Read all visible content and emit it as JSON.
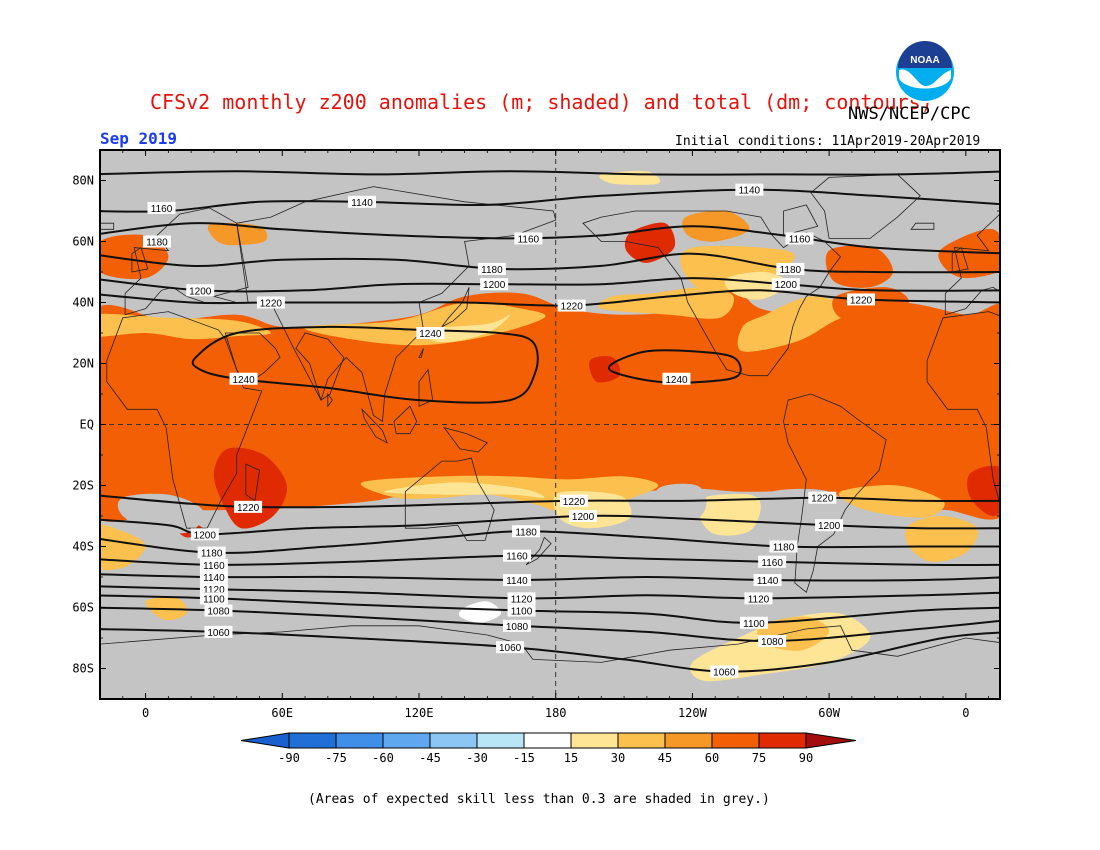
{
  "header": {
    "title": "CFSv2 monthly z200 anomalies (m; shaded) and total (dm; contours)",
    "agency": "NWS/NCEP/CPC",
    "month": "Sep 2019",
    "initial_conditions": "Initial conditions: 11Apr2019-20Apr2019",
    "logo_text": "NOAA"
  },
  "axes": {
    "lat_labels": [
      "80N",
      "60N",
      "40N",
      "20N",
      "EQ",
      "20S",
      "40S",
      "60S",
      "80S"
    ],
    "lat_values": [
      80,
      60,
      40,
      20,
      0,
      -20,
      -40,
      -60,
      -80
    ],
    "lon_labels": [
      "0",
      "60E",
      "120E",
      "180",
      "120W",
      "60W",
      "0"
    ],
    "lon_values": [
      0,
      60,
      120,
      180,
      240,
      300,
      360
    ],
    "lon_range": [
      -20,
      375
    ],
    "lat_range": [
      -90,
      90
    ]
  },
  "colorbar": {
    "ticks": [
      "-90",
      "-75",
      "-60",
      "-45",
      "-30",
      "-15",
      "15",
      "30",
      "45",
      "60",
      "75",
      "90"
    ],
    "colors": [
      "#1f6fd6",
      "#3f8ee8",
      "#5fa8f0",
      "#8cc6f4",
      "#b8e6f6",
      "#ffffff",
      "#fde595",
      "#fbc04d",
      "#f59827",
      "#f25f05",
      "#e02a02",
      "#b70f0a"
    ],
    "low_color": "#1a5fcf",
    "high_color": "#a40d0d"
  },
  "colors": {
    "grey": "#c4c4c4",
    "a15": "#fde595",
    "a30": "#fbc04d",
    "a45": "#f59827",
    "a60": "#f25f05",
    "a75": "#e02a02",
    "a90": "#b70f0a",
    "white": "#ffffff"
  },
  "contours": {
    "labels": [
      {
        "t": "1140",
        "lon": 95,
        "lat": 73
      },
      {
        "t": "1140",
        "lon": 265,
        "lat": 77
      },
      {
        "t": "1160",
        "lon": 7,
        "lat": 71
      },
      {
        "t": "1180",
        "lon": 5,
        "lat": 60
      },
      {
        "t": "1160",
        "lon": 168,
        "lat": 61
      },
      {
        "t": "1160",
        "lon": 287,
        "lat": 61
      },
      {
        "t": "1180",
        "lon": 152,
        "lat": 51
      },
      {
        "t": "1180",
        "lon": 283,
        "lat": 51
      },
      {
        "t": "1200",
        "lon": 24,
        "lat": 44
      },
      {
        "t": "1200",
        "lon": 153,
        "lat": 46
      },
      {
        "t": "1200",
        "lon": 281,
        "lat": 46
      },
      {
        "t": "1220",
        "lon": 55,
        "lat": 40
      },
      {
        "t": "1220",
        "lon": 187,
        "lat": 39
      },
      {
        "t": "1220",
        "lon": 314,
        "lat": 41
      },
      {
        "t": "1240",
        "lon": 125,
        "lat": 30
      },
      {
        "t": "1240",
        "lon": 43,
        "lat": 15
      },
      {
        "t": "1240",
        "lon": 233,
        "lat": 15
      },
      {
        "t": "1220",
        "lon": 45,
        "lat": -27
      },
      {
        "t": "1220",
        "lon": 188,
        "lat": -25
      },
      {
        "t": "1200",
        "lon": 192,
        "lat": -30
      },
      {
        "t": "1220",
        "lon": 297,
        "lat": -24
      },
      {
        "t": "1200",
        "lon": 300,
        "lat": -33
      },
      {
        "t": "1200",
        "lon": 26,
        "lat": -36
      },
      {
        "t": "1180",
        "lon": 167,
        "lat": -35
      },
      {
        "t": "1180",
        "lon": 280,
        "lat": -40
      },
      {
        "t": "1180",
        "lon": 29,
        "lat": -42
      },
      {
        "t": "1160",
        "lon": 30,
        "lat": -46
      },
      {
        "t": "1160",
        "lon": 163,
        "lat": -43
      },
      {
        "t": "1160",
        "lon": 275,
        "lat": -45
      },
      {
        "t": "1140",
        "lon": 30,
        "lat": -50
      },
      {
        "t": "1140",
        "lon": 163,
        "lat": -51
      },
      {
        "t": "1140",
        "lon": 273,
        "lat": -51
      },
      {
        "t": "1120",
        "lon": 30,
        "lat": -54
      },
      {
        "t": "1120",
        "lon": 165,
        "lat": -57
      },
      {
        "t": "1120",
        "lon": 269,
        "lat": -57
      },
      {
        "t": "1100",
        "lon": 30,
        "lat": -57
      },
      {
        "t": "1100",
        "lon": 165,
        "lat": -61
      },
      {
        "t": "1100",
        "lon": 267,
        "lat": -65
      },
      {
        "t": "1080",
        "lon": 32,
        "lat": -61
      },
      {
        "t": "1080",
        "lon": 163,
        "lat": -66
      },
      {
        "t": "1080",
        "lon": 275,
        "lat": -71
      },
      {
        "t": "1060",
        "lon": 32,
        "lat": -68
      },
      {
        "t": "1060",
        "lon": 160,
        "lat": -73
      },
      {
        "t": "1060",
        "lon": 254,
        "lat": -81
      }
    ]
  },
  "footer": {
    "note": "(Areas of expected skill less than 0.3 are shaded in grey.)"
  }
}
